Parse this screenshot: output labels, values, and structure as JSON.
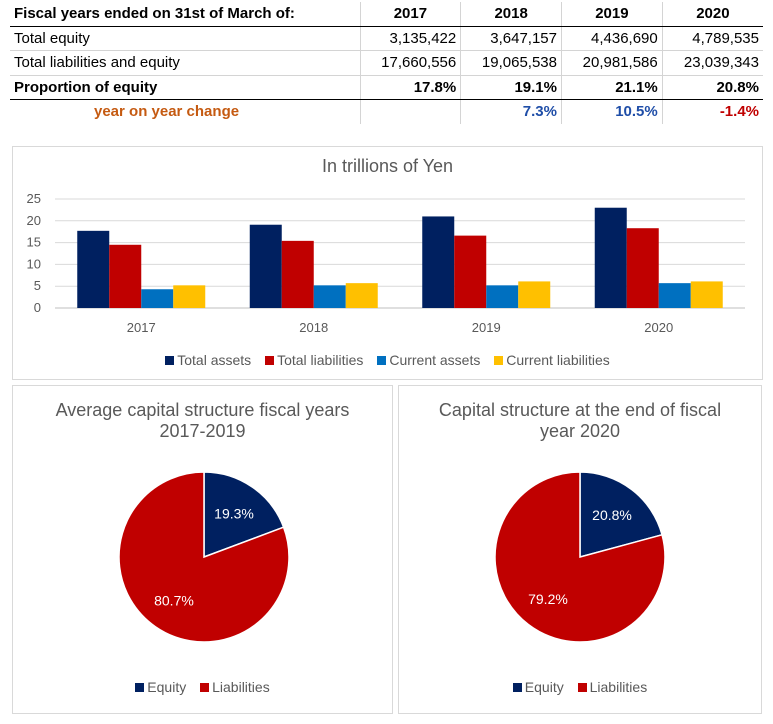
{
  "table": {
    "header": {
      "label": "Fiscal years ended on 31st of March of:",
      "years": [
        "2017",
        "2018",
        "2019",
        "2020"
      ]
    },
    "rows": [
      {
        "label": "Total equity",
        "values": [
          "3,135,422",
          "3,647,157",
          "4,436,690",
          "4,789,535"
        ]
      },
      {
        "label": "Total liabilities and equity",
        "values": [
          "17,660,556",
          "19,065,538",
          "20,981,586",
          "23,039,343"
        ]
      },
      {
        "label": "Proportion of equity",
        "values": [
          "17.8%",
          "19.1%",
          "21.1%",
          "20.8%"
        ]
      }
    ],
    "yoy": {
      "label": "year on year change",
      "values": [
        "",
        "7.3%",
        "10.5%",
        "-1.4%"
      ]
    }
  },
  "colors": {
    "navy": "#002060",
    "red": "#c00000",
    "blue": "#0070c0",
    "yellow": "#ffc000",
    "positive": "#1f4ea8",
    "negative": "#c00000",
    "orange_label": "#c55a11"
  },
  "chart_data": [
    {
      "type": "bar",
      "title": "In trillions of Yen",
      "categories": [
        "2017",
        "2018",
        "2019",
        "2020"
      ],
      "series": [
        {
          "name": "Total assets",
          "color": "#002060",
          "values": [
            17.7,
            19.1,
            21.0,
            23.0
          ]
        },
        {
          "name": "Total liabilities",
          "color": "#c00000",
          "values": [
            14.5,
            15.4,
            16.6,
            18.3
          ]
        },
        {
          "name": "Current assets",
          "color": "#0070c0",
          "values": [
            4.3,
            5.2,
            5.2,
            5.7
          ]
        },
        {
          "name": "Current liabilities",
          "color": "#ffc000",
          "values": [
            5.2,
            5.7,
            6.1,
            6.1
          ]
        }
      ],
      "yticks": [
        "0",
        "5",
        "10",
        "15",
        "20",
        "25"
      ],
      "ylim": [
        0,
        25
      ],
      "grid": true,
      "legend": "bottom"
    },
    {
      "type": "pie",
      "title": "Average capital structure fiscal years 2017-2019",
      "slices": [
        {
          "name": "Equity",
          "value": 19.3,
          "label": "19.3%",
          "color": "#002060"
        },
        {
          "name": "Liabilities",
          "value": 80.7,
          "label": "80.7%",
          "color": "#c00000"
        }
      ],
      "legend": "bottom"
    },
    {
      "type": "pie",
      "title": "Capital structure at the end of fiscal year 2020",
      "slices": [
        {
          "name": "Equity",
          "value": 20.8,
          "label": "20.8%",
          "color": "#002060"
        },
        {
          "name": "Liabilities",
          "value": 79.2,
          "label": "79.2%",
          "color": "#c00000"
        }
      ],
      "legend": "bottom"
    }
  ]
}
